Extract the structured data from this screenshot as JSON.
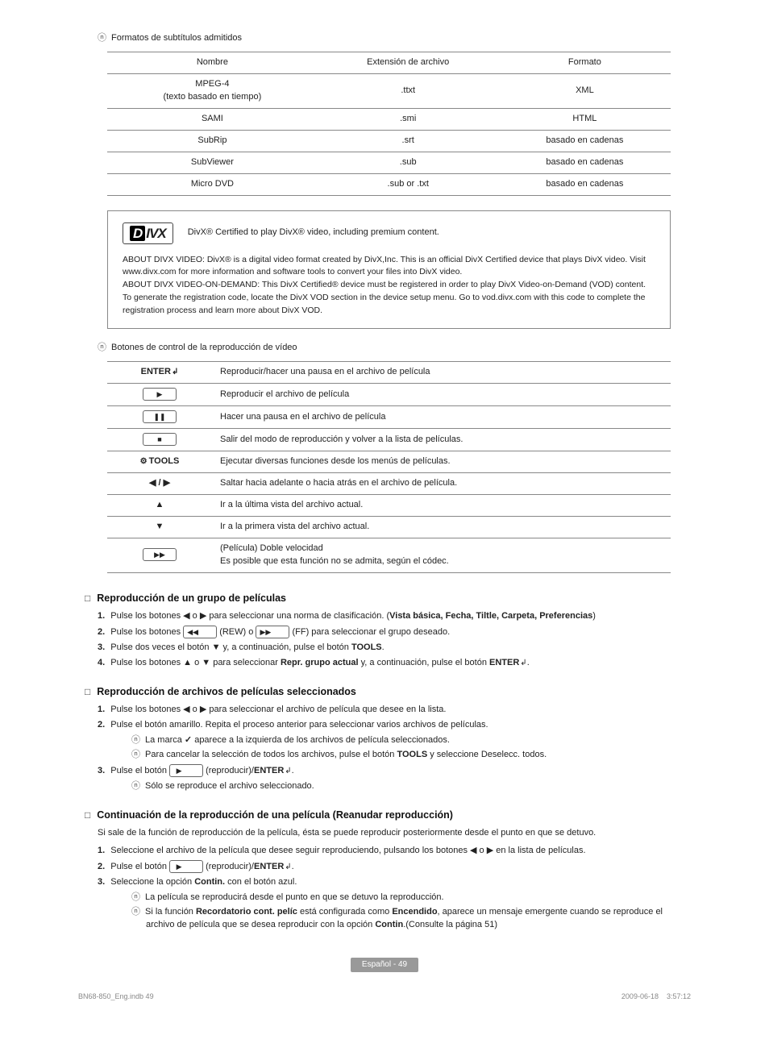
{
  "notes": {
    "subtitle_formats": "Formatos de subtítulos admitidos",
    "video_controls": "Botones de control de la reproducción de vídeo"
  },
  "subtitle_table": {
    "headers": [
      "Nombre",
      "Extensión de archivo",
      "Formato"
    ],
    "rows": [
      [
        "MPEG-4\n(texto basado en tiempo)",
        ".ttxt",
        "XML"
      ],
      [
        "SAMI",
        ".smi",
        "HTML"
      ],
      [
        "SubRip",
        ".srt",
        "basado en cadenas"
      ],
      [
        "SubViewer",
        ".sub",
        "basado en cadenas"
      ],
      [
        "Micro DVD",
        ".sub or .txt",
        "basado en cadenas"
      ]
    ]
  },
  "divx": {
    "logo_left": "D",
    "logo_right": "IVX",
    "headline": "DivX® Certified to play DivX® video, including premium content.",
    "body": "ABOUT DIVX VIDEO: DivX® is a digital video format created by DivX,Inc. This is an official DivX Certified device that plays DivX video. Visit www.divx.com for more information and software tools to convert your files into DivX video.\nABOUT DIVX VIDEO-ON-DEMAND: This DivX Certified® device must be registered in order to play DivX Video-on-Demand (VOD) content. To generate the registration code, locate the DivX VOD section in the device setup menu. Go to vod.divx.com with this code to complete the registration process and learn more about DivX VOD."
  },
  "controls_table": {
    "rows": [
      {
        "key_html": "<b>ENTER</b><span class=\"enter-glyph\"></span>",
        "desc": "Reproducir/hacer una pausa en el archivo de película"
      },
      {
        "key_html": "<span class=\"btn-key\">▶</span>",
        "desc": "Reproducir el archivo de película"
      },
      {
        "key_html": "<span class=\"btn-key\">❚❚</span>",
        "desc": "Hacer una pausa en el archivo de película"
      },
      {
        "key_html": "<span class=\"btn-key\">■</span>",
        "desc": "Salir del modo de reproducción y volver a la lista de películas."
      },
      {
        "key_html": "<span class=\"tools-icon\"></span><b>TOOLS</b>",
        "desc": "Ejecutar diversas funciones desde los menús de películas."
      },
      {
        "key_html": "◀ / ▶",
        "desc": "Saltar hacia adelante o hacia atrás en el archivo de película."
      },
      {
        "key_html": "▲",
        "desc": "Ir a la última vista del archivo actual."
      },
      {
        "key_html": "▼",
        "desc": "Ir a la primera vista del archivo actual."
      },
      {
        "key_html": "<span class=\"btn-key\">▶▶</span>",
        "desc": "(Película) Doble velocidad<br>Es posible que esta función no se admita, según el códec."
      }
    ]
  },
  "sections": {
    "group": {
      "title": "Reproducción de un grupo de películas",
      "steps": [
        "Pulse los botones ◀ o ▶ para seleccionar una norma de clasificación. (<b>Vista básica, Fecha, Tiltle, Carpeta, Preferencias</b>)",
        "Pulse los botones <span class=\"btn-key\">◀◀</span> (REW) o <span class=\"btn-key\">▶▶</span> (FF) para seleccionar el grupo deseado.",
        "Pulse dos veces el botón ▼ y, a continuación, pulse el botón <b>TOOLS</b>.",
        "Pulse los botones ▲ o ▼ para seleccionar <b>Repr. grupo actual</b> y, a continuación, pulse el botón <b>ENTER</b><span class=\"enter-glyph\"></span>."
      ]
    },
    "selected": {
      "title": "Reproducción de archivos de películas seleccionados",
      "steps": [
        "Pulse los botones ◀ o ▶ para seleccionar el archivo de película que desee en la lista.",
        "Pulse el botón amarillo. Repita el proceso anterior para seleccionar varios archivos de películas.",
        "Pulse el botón <span class=\"btn-key\">▶</span> (reproducir)/<b>ENTER</b><span class=\"enter-glyph\"></span>."
      ],
      "subnotes_after_2": [
        "La marca <span class=\"check\"></span> aparece a la izquierda de los archivos de película seleccionados.",
        "Para cancelar la selección de todos los archivos, pulse el botón <b>TOOLS</b> y seleccione Deselecc. todos."
      ],
      "subnotes_after_3": [
        "Sólo se reproduce el archivo seleccionado."
      ]
    },
    "resume": {
      "title": "Continuación de la reproducción de una película (Reanudar reproducción)",
      "intro": "Si sale de la función de reproducción de la película, ésta se puede reproducir posteriormente desde el punto en que se detuvo.",
      "steps": [
        "Seleccione el archivo de la película que desee seguir reproduciendo, pulsando los botones ◀ o ▶ en la lista de películas.",
        "Pulse el botón <span class=\"btn-key\">▶</span> (reproducir)/<b>ENTER</b><span class=\"enter-glyph\"></span>.",
        "Seleccione la opción <b>Contin.</b> con el botón azul."
      ],
      "subnotes_after_3": [
        "La película se reproducirá desde el punto en que se detuvo la reproducción.",
        "Si la función <b>Recordatorio cont. pelíc</b> está configurada como <b>Encendido</b>, aparece un mensaje emergente cuando se reproduce el archivo de película que se desea reproducir con la opción <b>Contin</b>.(Consulte la página 51)"
      ]
    }
  },
  "footer": {
    "page_label": "Español - 49",
    "left": "BN68-850_Eng.indb   49",
    "right": "2009-06-18      3:57:12"
  }
}
